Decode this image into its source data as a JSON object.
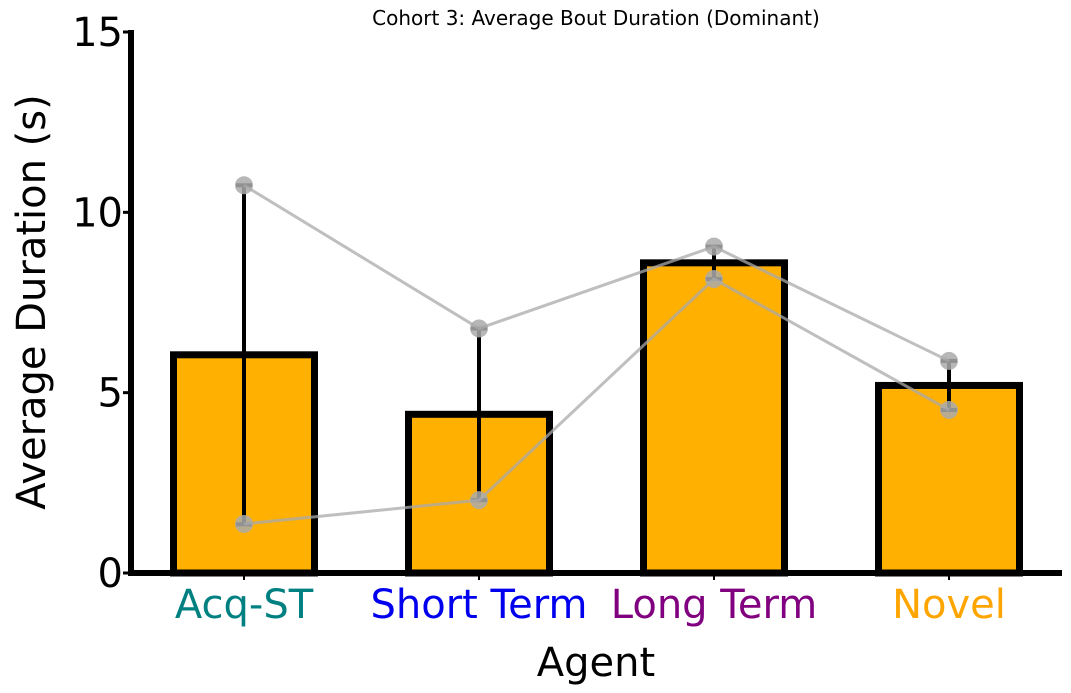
{
  "chart_data": {
    "type": "bar",
    "title": "Cohort 3: Average Bout Duration (Dominant)",
    "xlabel": "Agent",
    "ylabel": "Average Duration (s)",
    "ylim": [
      0,
      15
    ],
    "yticks": [
      0,
      5,
      10,
      15
    ],
    "categories": [
      "Acq-ST",
      "Short Term",
      "Long Term",
      "Novel"
    ],
    "category_colors": [
      "#008080",
      "#0000ee",
      "#800080",
      "#ffa500"
    ],
    "values": [
      6.05,
      4.4,
      8.6,
      5.2
    ],
    "error": [
      4.7,
      2.38,
      0.45,
      0.68
    ],
    "bar_color": "#ffb000",
    "bar_edge_color": "#000000",
    "subject_series": [
      {
        "values": [
          10.75,
          6.78,
          9.05,
          5.88
        ]
      },
      {
        "values": [
          1.36,
          2.02,
          8.15,
          4.52
        ]
      }
    ],
    "subject_color": "#aaaaaa",
    "grid": false,
    "legend": "none"
  }
}
